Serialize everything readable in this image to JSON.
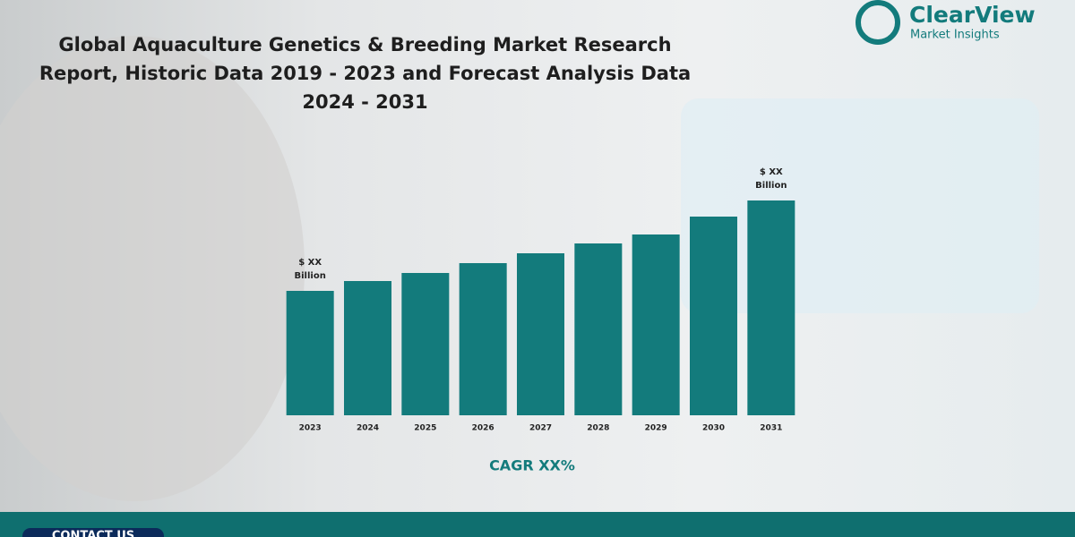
{
  "chart_data": {
    "type": "bar",
    "title": "Global Aquaculture Genetics & Breeding Market Research Report, Historic Data 2019 - 2023 and Forecast Analysis Data 2024 - 2031",
    "categories": [
      "2023",
      "2024",
      "2025",
      "2026",
      "2027",
      "2028",
      "2029",
      "2030",
      "2031"
    ],
    "values": [
      139,
      150,
      159,
      170,
      181,
      192,
      202,
      222,
      240
    ],
    "color": "#137b7c",
    "ylim": [
      0,
      240
    ],
    "annotations": [
      {
        "category": "2023",
        "text": [
          "$ XX",
          "Billion"
        ]
      },
      {
        "category": "2031",
        "text": [
          "$ XX",
          "Billion"
        ]
      }
    ],
    "cagr": "CAGR XX%"
  },
  "logo": {
    "name": "ClearView",
    "tagline": "Market Insights"
  },
  "footer": {
    "contact": "CONTACT US"
  }
}
